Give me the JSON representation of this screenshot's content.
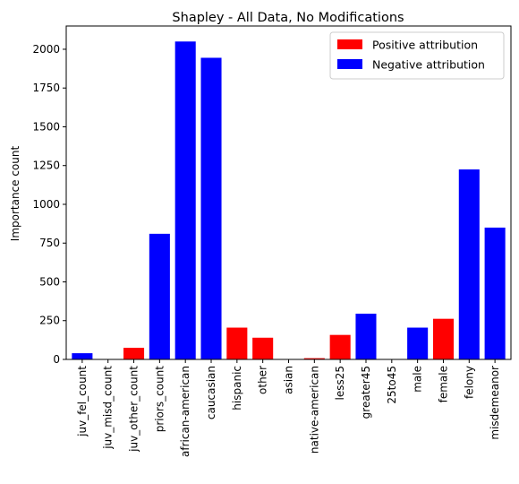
{
  "chart_data": {
    "type": "bar",
    "title": "Shapley - All Data, No Modifications",
    "xlabel": "",
    "ylabel": "Importance count",
    "ylim": [
      0,
      2150
    ],
    "yticks": [
      0,
      250,
      500,
      750,
      1000,
      1250,
      1500,
      1750,
      2000
    ],
    "grid": false,
    "legend_position": "top-right",
    "colors": {
      "positive": "#ff0000",
      "negative": "#0000ff"
    },
    "legend": [
      {
        "label": "Positive attribution",
        "color": "#ff0000"
      },
      {
        "label": "Negative attribution",
        "color": "#0000ff"
      }
    ],
    "categories": [
      "juv_fel_count",
      "juv_misd_count",
      "juv_other_count",
      "priors_count",
      "african-american",
      "caucasian",
      "hispanic",
      "other",
      "asian",
      "native-american",
      "less25",
      "greater45",
      "25to45",
      "male",
      "female",
      "felony",
      "misdemeanor"
    ],
    "values": [
      40,
      0,
      75,
      810,
      2050,
      1945,
      205,
      140,
      0,
      8,
      158,
      295,
      0,
      205,
      262,
      1225,
      850
    ],
    "attribution": [
      "negative",
      "negative",
      "positive",
      "negative",
      "negative",
      "negative",
      "positive",
      "positive",
      "negative",
      "positive",
      "positive",
      "negative",
      "negative",
      "negative",
      "positive",
      "negative",
      "negative"
    ]
  }
}
